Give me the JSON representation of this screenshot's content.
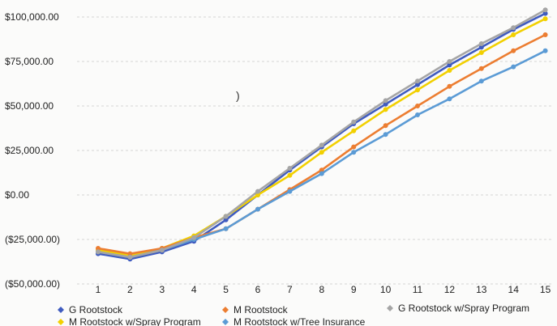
{
  "chart_data": {
    "type": "line",
    "x": [
      1,
      2,
      3,
      4,
      5,
      6,
      7,
      8,
      9,
      10,
      11,
      12,
      13,
      14,
      15
    ],
    "ylim": [
      -50000,
      100000
    ],
    "yticks": [
      "$100,000.00",
      "$75,000.00",
      "$50,000.00",
      "$25,000.00",
      "$0.00",
      "($25,000.00)",
      "($50,000.00)"
    ],
    "xticks": [
      "1",
      "2",
      "3",
      "4",
      "5",
      "6",
      "7",
      "8",
      "9",
      "10",
      "11",
      "12",
      "13",
      "14",
      "15"
    ],
    "grid": "horizontal dashed",
    "legend_position": "bottom",
    "annotation": ")",
    "series": [
      {
        "name": "G Rootstock",
        "color": "#3f5bbf",
        "values": [
          -33000,
          -36000,
          -32000,
          -26000,
          -14000,
          0,
          14000,
          27000,
          40000,
          51000,
          62000,
          73000,
          83000,
          93000,
          102000
        ]
      },
      {
        "name": "M Rootstock w/Spray Program",
        "color": "#f2d000",
        "values": [
          -31000,
          -34000,
          -30000,
          -23000,
          -12000,
          0,
          11000,
          24000,
          36000,
          48000,
          59000,
          70000,
          80000,
          90000,
          99000
        ]
      },
      {
        "name": "M Rootstock",
        "color": "#ec7d31",
        "values": [
          -30000,
          -33000,
          -30000,
          -24000,
          -19000,
          -8000,
          3000,
          14000,
          27000,
          39000,
          50000,
          61000,
          71000,
          81000,
          90000
        ]
      },
      {
        "name": "M Rootstock w/Tree Insurance",
        "color": "#5b9bd5",
        "values": [
          -32000,
          -35000,
          -31000,
          -25000,
          -19000,
          -8000,
          2000,
          12000,
          24000,
          34000,
          45000,
          54000,
          64000,
          72000,
          81000
        ]
      },
      {
        "name": "G Rootstock w/Spray Program",
        "color": "#a5a5a5",
        "values": [
          -32000,
          -35000,
          -31000,
          -24000,
          -12000,
          2000,
          15000,
          28000,
          41000,
          53000,
          64000,
          75000,
          85000,
          94000,
          104000
        ]
      }
    ]
  }
}
